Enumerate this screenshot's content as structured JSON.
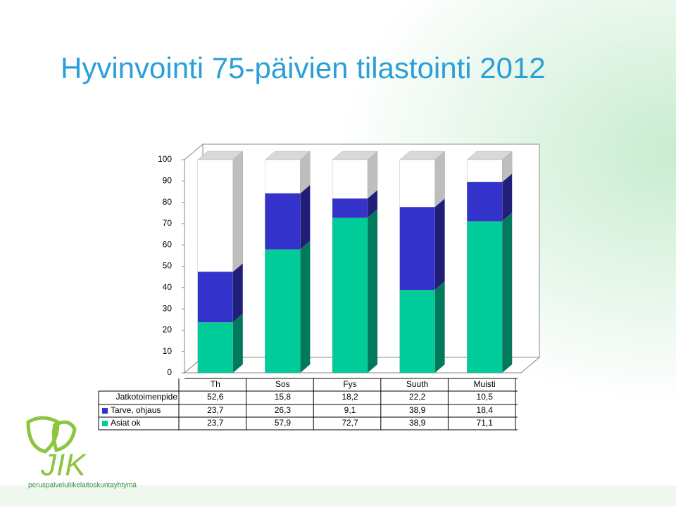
{
  "chart_data": {
    "type": "stacked-bar-3d",
    "title": "Hyvinvointi 75-päivien tilastointi 2012",
    "categories": [
      "Th",
      "Sos",
      "Fys",
      "Suuth",
      "Muisti"
    ],
    "series": [
      {
        "name": "Jatkotoimenpide",
        "color": "#ffffff",
        "values": [
          52.6,
          15.8,
          18.2,
          22.2,
          10.5
        ],
        "value_labels": [
          "52,6",
          "15,8",
          "18,2",
          "22,2",
          "10,5"
        ]
      },
      {
        "name": "Tarve, ohjaus",
        "color": "#3333cc",
        "values": [
          23.7,
          26.3,
          9.1,
          38.9,
          18.4
        ],
        "value_labels": [
          "23,7",
          "26,3",
          "9,1",
          "38,9",
          "18,4"
        ]
      },
      {
        "name": "Asiat ok",
        "color": "#00cc99",
        "values": [
          23.7,
          57.9,
          72.7,
          38.9,
          71.1
        ],
        "value_labels": [
          "23,7",
          "57,9",
          "72,7",
          "38,9",
          "71,1"
        ]
      }
    ],
    "ylim": [
      0,
      100
    ],
    "yticks": [
      0,
      10,
      20,
      30,
      40,
      50,
      60,
      70,
      80,
      90,
      100
    ],
    "grid": false
  },
  "logo": {
    "text": "JIK",
    "tagline": "peruspalveluliikelaitoskuntayhtymä"
  }
}
